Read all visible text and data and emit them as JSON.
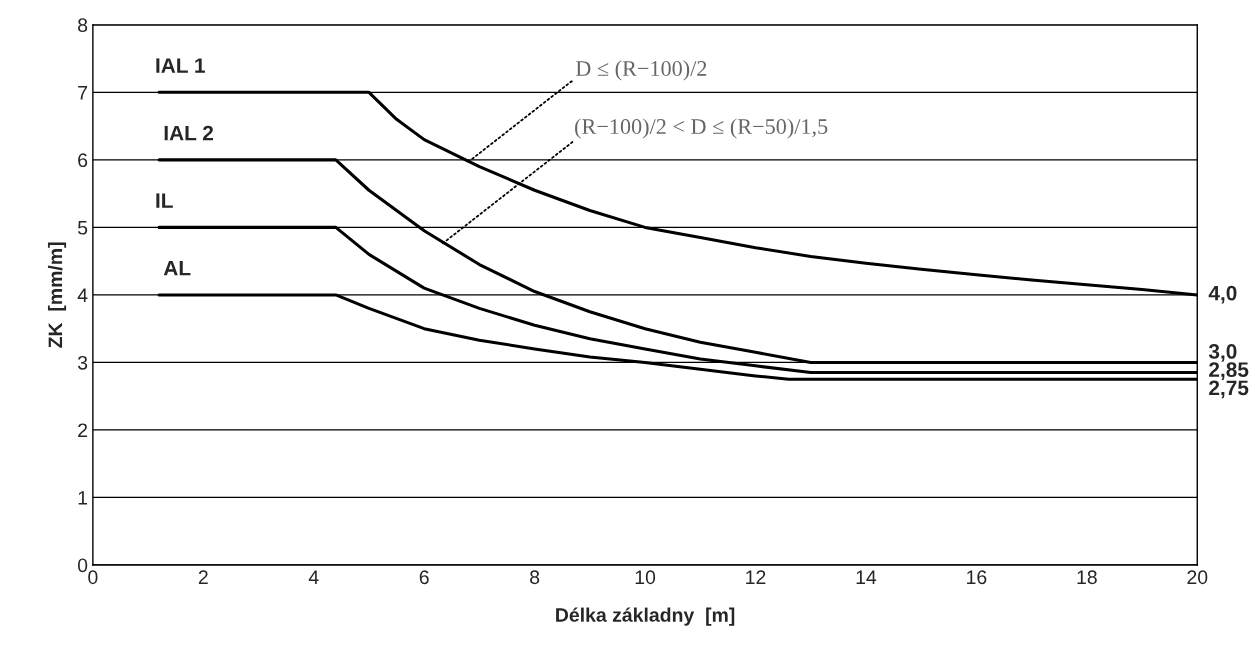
{
  "chart_data": {
    "type": "line",
    "xlabel": "Délka základny  [m]",
    "ylabel": "ZK  [mm/m]",
    "xlim": [
      0,
      20
    ],
    "ylim": [
      0,
      8
    ],
    "xticks": [
      0,
      2,
      4,
      6,
      8,
      10,
      12,
      14,
      16,
      18,
      20
    ],
    "yticks": [
      0,
      1,
      2,
      3,
      4,
      5,
      6,
      7,
      8
    ],
    "grid": "y",
    "legend": false,
    "marker": "none",
    "line_style": "solid",
    "series": [
      {
        "name": "IAL 1",
        "color": "#000000",
        "x": [
          1.2,
          5.0,
          5.5,
          6,
          7,
          8,
          9,
          10,
          11,
          12,
          13,
          14,
          15,
          16,
          17,
          18,
          19,
          20
        ],
        "values": [
          7,
          7,
          6.6,
          6.3,
          5.9,
          5.55,
          5.25,
          5.0,
          4.85,
          4.7,
          4.57,
          4.47,
          4.38,
          4.3,
          4.22,
          4.15,
          4.08,
          4.0
        ]
      },
      {
        "name": "IAL 2",
        "color": "#000000",
        "x": [
          1.2,
          4.4,
          5,
          6,
          7,
          8,
          9,
          10,
          11,
          12,
          13,
          20
        ],
        "values": [
          6,
          6,
          5.55,
          4.95,
          4.45,
          4.05,
          3.75,
          3.5,
          3.3,
          3.15,
          3.0,
          3.0
        ]
      },
      {
        "name": "IL",
        "color": "#000000",
        "x": [
          1.2,
          4.4,
          5,
          6,
          7,
          8,
          9,
          10,
          11,
          12,
          13,
          20
        ],
        "values": [
          5,
          5,
          4.6,
          4.1,
          3.8,
          3.55,
          3.35,
          3.2,
          3.05,
          2.95,
          2.85,
          2.85
        ]
      },
      {
        "name": "AL",
        "color": "#000000",
        "x": [
          1.2,
          4.4,
          5,
          6,
          7,
          8,
          9,
          10,
          11,
          12,
          12.6,
          20
        ],
        "values": [
          4,
          4,
          3.8,
          3.5,
          3.33,
          3.2,
          3.08,
          3.0,
          2.9,
          2.8,
          2.75,
          2.75
        ]
      }
    ],
    "annotations": [
      {
        "text": "D ≤ (R−100)/2",
        "x": 6.8,
        "y": 5.97
      },
      {
        "text": "(R−100)/2 < D ≤ (R−50)/1,5",
        "x": 6.3,
        "y": 4.74
      },
      {
        "text": "4,0",
        "x": 20,
        "y": 4.0
      },
      {
        "text": "3,0",
        "x": 20,
        "y": 3.0
      },
      {
        "text": "2,85",
        "x": 20,
        "y": 2.85
      },
      {
        "text": "2,75",
        "x": 20,
        "y": 2.75
      }
    ]
  }
}
